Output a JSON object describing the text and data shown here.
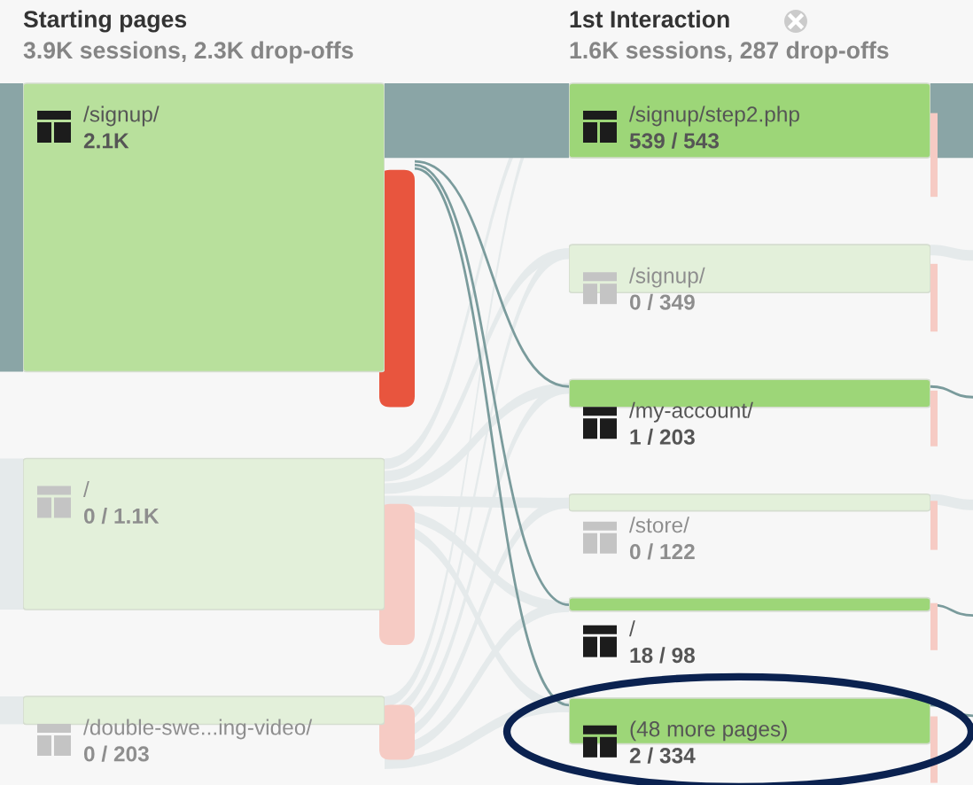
{
  "chart_data": [
    {
      "type": "other",
      "title": "Starting pages",
      "subtitle": "3.9K sessions, 2.3K drop-offs",
      "categories": [
        "/signup/",
        "/",
        "/double-swe...ing-video/"
      ],
      "values": [
        2100,
        1100,
        203
      ],
      "value_labels": [
        "2.1K",
        "0 / 1.1K",
        "0 / 203"
      ],
      "colors": [
        "#b8e09c",
        "#e3f0da",
        "#e3f0da"
      ]
    },
    {
      "type": "other",
      "title": "1st Interaction",
      "subtitle": "1.6K sessions, 287 drop-offs",
      "categories": [
        "/signup/step2.php",
        "/signup/",
        "/my-account/",
        "/store/",
        "/",
        "(48 more pages)"
      ],
      "values": [
        543,
        349,
        203,
        122,
        98,
        334
      ],
      "value_labels": [
        "539 / 543",
        "0 / 349",
        "1 / 203",
        "0 / 122",
        "18 / 98",
        "2 / 334"
      ],
      "colors": [
        "#9dd678",
        "#e3f0da",
        "#9dd678",
        "#e3f0da",
        "#9dd678",
        "#9dd678"
      ]
    }
  ]
}
